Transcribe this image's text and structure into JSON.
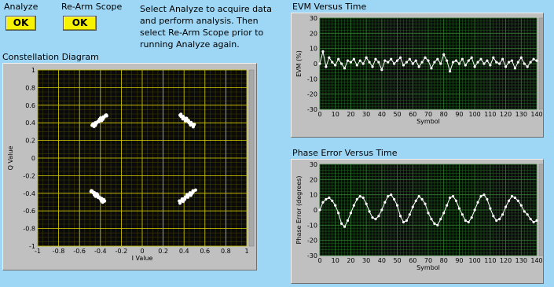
{
  "controls": {
    "analyze_label": "Analyze",
    "analyze_button": "OK",
    "rearm_label": "Re-Arm Scope",
    "rearm_button": "OK"
  },
  "instructions": [
    "Select Analyze to acquire data",
    "and perform analysis.  Then",
    "select Re-Arm Scope prior to",
    "running Analyze again."
  ],
  "colors": {
    "background": "#9ed7f6",
    "plot_bg": "#0a0a0a",
    "grid_yellow": "#d8d000",
    "grid_green": "#1a5a1a",
    "button_yellow": "#f7f200",
    "trace": "#ffffff"
  },
  "chart_data": [
    {
      "type": "scatter",
      "title": "Constellation Diagram",
      "xlabel": "I Value",
      "ylabel": "Q Value",
      "xlim": [
        -1,
        1
      ],
      "ylim": [
        -1,
        1
      ],
      "xticks": [
        "-1",
        "-0.8",
        "-0.6",
        "-0.4",
        "-0.2",
        "0",
        "0.2",
        "0.4",
        "0.6",
        "0.8",
        "1"
      ],
      "yticks": [
        "1",
        "0.8",
        "0.6",
        "0.4",
        "0.2",
        "0",
        "-0.2",
        "-0.4",
        "-0.6",
        "-0.8",
        "-1"
      ],
      "grid": true,
      "clusters": [
        {
          "from": [
            -0.48,
            0.36
          ],
          "to": [
            -0.34,
            0.49
          ]
        },
        {
          "from": [
            0.36,
            0.49
          ],
          "to": [
            0.5,
            0.36
          ]
        },
        {
          "from": [
            -0.49,
            -0.37
          ],
          "to": [
            -0.36,
            -0.5
          ]
        },
        {
          "from": [
            0.36,
            -0.5
          ],
          "to": [
            0.5,
            -0.37
          ]
        }
      ]
    },
    {
      "type": "line",
      "title": "EVM Versus Time",
      "xlabel": "Symbol",
      "ylabel": "EVM (%)",
      "xlim": [
        0,
        140
      ],
      "ylim": [
        -30,
        30
      ],
      "xticks": [
        "0",
        "10",
        "20",
        "30",
        "40",
        "50",
        "60",
        "70",
        "80",
        "90",
        "100",
        "110",
        "120",
        "130",
        "140"
      ],
      "yticks": [
        "30",
        "20",
        "10",
        "0",
        "-10",
        "-20",
        "-30"
      ],
      "grid": true,
      "x": [
        0,
        2,
        4,
        6,
        8,
        10,
        12,
        14,
        16,
        18,
        20,
        22,
        24,
        26,
        28,
        30,
        32,
        34,
        36,
        38,
        40,
        42,
        44,
        46,
        48,
        50,
        52,
        54,
        56,
        58,
        60,
        62,
        64,
        66,
        68,
        70,
        72,
        74,
        76,
        78,
        80,
        82,
        84,
        86,
        88,
        90,
        92,
        94,
        96,
        98,
        100,
        102,
        104,
        106,
        108,
        110,
        112,
        114,
        116,
        118,
        120,
        122,
        124,
        126,
        128,
        130,
        132,
        134,
        136,
        138,
        140
      ],
      "values": [
        0,
        8,
        -2,
        4,
        1,
        -1,
        3,
        0,
        -3,
        2,
        1,
        3,
        -1,
        2,
        0,
        4,
        1,
        -2,
        3,
        1,
        -4,
        2,
        1,
        3,
        0,
        2,
        4,
        -1,
        1,
        3,
        0,
        2,
        -2,
        1,
        4,
        2,
        -3,
        1,
        3,
        0,
        6,
        2,
        -5,
        1,
        2,
        0,
        3,
        -1,
        2,
        4,
        -2,
        1,
        3,
        0,
        2,
        -1,
        4,
        1,
        0,
        3,
        -2,
        1,
        2,
        -3,
        1,
        4,
        0,
        -2,
        1,
        3,
        2
      ]
    },
    {
      "type": "line",
      "title": "Phase Error Versus Time",
      "xlabel": "Symbol",
      "ylabel": "Phase Error (degrees)",
      "xlim": [
        0,
        140
      ],
      "ylim": [
        -30,
        30
      ],
      "xticks": [
        "0",
        "10",
        "20",
        "30",
        "40",
        "50",
        "60",
        "70",
        "80",
        "90",
        "100",
        "110",
        "120",
        "130",
        "140"
      ],
      "yticks": [
        "30",
        "20",
        "10",
        "0",
        "-10",
        "-20",
        "-30"
      ],
      "grid": true,
      "x": [
        0,
        2,
        4,
        6,
        8,
        10,
        12,
        14,
        16,
        18,
        20,
        22,
        24,
        26,
        28,
        30,
        32,
        34,
        36,
        38,
        40,
        42,
        44,
        46,
        48,
        50,
        52,
        54,
        56,
        58,
        60,
        62,
        64,
        66,
        68,
        70,
        72,
        74,
        76,
        78,
        80,
        82,
        84,
        86,
        88,
        90,
        92,
        94,
        96,
        98,
        100,
        102,
        104,
        106,
        108,
        110,
        112,
        114,
        116,
        118,
        120,
        122,
        124,
        126,
        128,
        130,
        132,
        134,
        136,
        138,
        140
      ],
      "values": [
        0,
        5,
        7,
        8,
        6,
        3,
        -2,
        -9,
        -11,
        -7,
        -2,
        3,
        7,
        9,
        8,
        4,
        -1,
        -5,
        -6,
        -4,
        0,
        5,
        9,
        10,
        7,
        3,
        -4,
        -8,
        -7,
        -3,
        2,
        6,
        9,
        7,
        4,
        -2,
        -6,
        -9,
        -10,
        -6,
        -2,
        3,
        8,
        9,
        6,
        1,
        -3,
        -7,
        -8,
        -5,
        0,
        5,
        9,
        10,
        7,
        1,
        -4,
        -7,
        -6,
        -3,
        2,
        6,
        9,
        8,
        6,
        3,
        -1,
        -3,
        -6,
        -8,
        -7
      ]
    }
  ]
}
